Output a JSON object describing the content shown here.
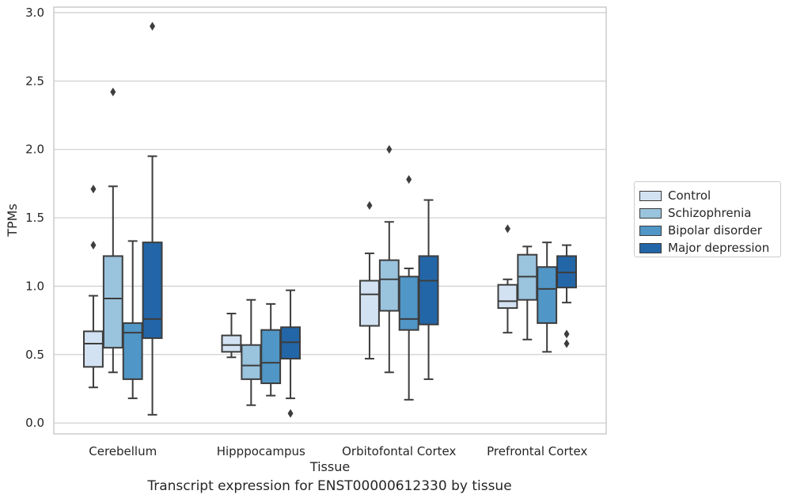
{
  "chart_data": {
    "type": "boxplot",
    "title": "",
    "caption": "Transcript expression for ENST00000612330 by tissue",
    "xlabel": "Tissue",
    "ylabel": "TPMs",
    "ylim": [
      -0.08,
      3.04
    ],
    "yticks": [
      "0.0",
      "0.5",
      "1.0",
      "1.5",
      "2.0",
      "2.5",
      "3.0"
    ],
    "grid": "horizontal",
    "legend_position": "right",
    "categories": [
      "Cerebellum",
      "Hipppocampus",
      "Orbitofontal Cortex",
      "Prefrontal Cortex"
    ],
    "series": [
      {
        "name": "Control",
        "color": "#d3e2f2",
        "boxes": [
          {
            "whislo": 0.26,
            "q1": 0.41,
            "med": 0.58,
            "q3": 0.67,
            "whishi": 0.93,
            "fliers": [
              1.3,
              1.71
            ]
          },
          {
            "whislo": 0.48,
            "q1": 0.52,
            "med": 0.57,
            "q3": 0.64,
            "whishi": 0.8,
            "fliers": []
          },
          {
            "whislo": 0.47,
            "q1": 0.71,
            "med": 0.94,
            "q3": 1.04,
            "whishi": 1.24,
            "fliers": [
              1.59
            ]
          },
          {
            "whislo": 0.66,
            "q1": 0.84,
            "med": 0.89,
            "q3": 1.01,
            "whishi": 1.05,
            "fliers": [
              1.42
            ]
          }
        ]
      },
      {
        "name": "Schizophrenia",
        "color": "#9ac3dd",
        "boxes": [
          {
            "whislo": 0.37,
            "q1": 0.55,
            "med": 0.91,
            "q3": 1.22,
            "whishi": 1.73,
            "fliers": [
              2.42
            ]
          },
          {
            "whislo": 0.13,
            "q1": 0.32,
            "med": 0.42,
            "q3": 0.57,
            "whishi": 0.9,
            "fliers": []
          },
          {
            "whislo": 0.37,
            "q1": 0.82,
            "med": 1.05,
            "q3": 1.19,
            "whishi": 1.47,
            "fliers": [
              2.0
            ]
          },
          {
            "whislo": 0.61,
            "q1": 0.9,
            "med": 1.07,
            "q3": 1.23,
            "whishi": 1.29,
            "fliers": []
          }
        ]
      },
      {
        "name": "Bipolar disorder",
        "color": "#5096c6",
        "boxes": [
          {
            "whislo": 0.18,
            "q1": 0.32,
            "med": 0.66,
            "q3": 0.73,
            "whishi": 1.33,
            "fliers": []
          },
          {
            "whislo": 0.2,
            "q1": 0.29,
            "med": 0.44,
            "q3": 0.68,
            "whishi": 0.87,
            "fliers": []
          },
          {
            "whislo": 0.17,
            "q1": 0.68,
            "med": 0.76,
            "q3": 1.07,
            "whishi": 1.13,
            "fliers": [
              1.78
            ]
          },
          {
            "whislo": 0.52,
            "q1": 0.73,
            "med": 0.98,
            "q3": 1.14,
            "whishi": 1.32,
            "fliers": []
          }
        ]
      },
      {
        "name": "Major depression",
        "color": "#2366a8",
        "boxes": [
          {
            "whislo": 0.06,
            "q1": 0.62,
            "med": 0.76,
            "q3": 1.32,
            "whishi": 1.95,
            "fliers": [
              2.9
            ]
          },
          {
            "whislo": 0.18,
            "q1": 0.47,
            "med": 0.59,
            "q3": 0.7,
            "whishi": 0.97,
            "fliers": [
              0.07
            ]
          },
          {
            "whislo": 0.32,
            "q1": 0.72,
            "med": 1.04,
            "q3": 1.22,
            "whishi": 1.63,
            "fliers": []
          },
          {
            "whislo": 0.88,
            "q1": 0.99,
            "med": 1.1,
            "q3": 1.22,
            "whishi": 1.3,
            "fliers": [
              0.58,
              0.65
            ]
          }
        ]
      }
    ]
  }
}
